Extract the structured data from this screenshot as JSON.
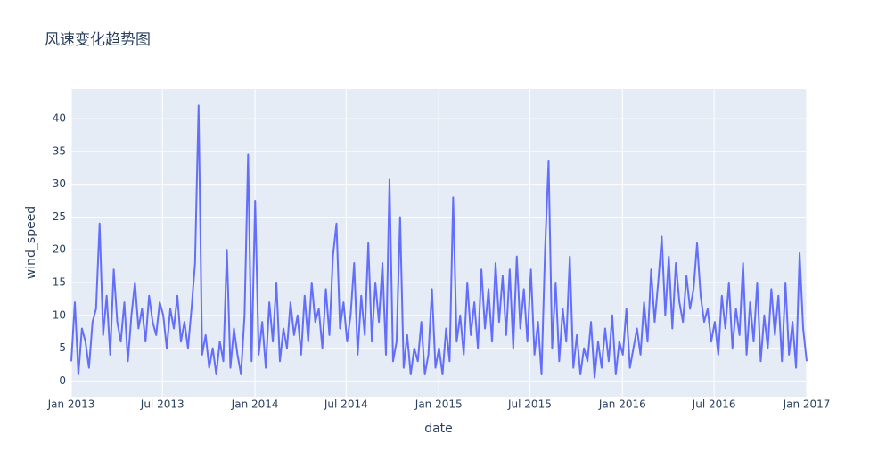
{
  "chart_data": {
    "type": "line",
    "title": "风速变化趋势图",
    "x_label": "date",
    "y_label": "wind_speed",
    "xlim": [
      "2013-01",
      "2017-01"
    ],
    "xticks": [
      {
        "value": "2013-01",
        "label": "Jan 2013"
      },
      {
        "value": "2013-07",
        "label": "Jul 2013"
      },
      {
        "value": "2014-01",
        "label": "Jan 2014"
      },
      {
        "value": "2014-07",
        "label": "Jul 2014"
      },
      {
        "value": "2015-01",
        "label": "Jan 2015"
      },
      {
        "value": "2015-07",
        "label": "Jul 2015"
      },
      {
        "value": "2016-01",
        "label": "Jan 2016"
      },
      {
        "value": "2016-07",
        "label": "Jul 2016"
      },
      {
        "value": "2017-01",
        "label": "Jan 2017"
      }
    ],
    "ylim": [
      -2.4,
      44.5
    ],
    "yticks": [
      0,
      5,
      10,
      15,
      20,
      25,
      30,
      35,
      40
    ],
    "grid": true,
    "series": [
      {
        "name": "wind_speed",
        "color": "#636efa",
        "values": [
          3,
          12,
          1,
          8,
          6,
          2,
          9,
          11,
          24,
          7,
          13,
          4,
          17,
          9,
          6,
          12,
          3,
          10,
          15,
          8,
          11,
          6,
          13,
          9,
          7,
          12,
          10,
          5,
          11,
          8,
          13,
          6,
          9,
          5,
          11,
          18,
          42,
          4,
          7,
          2,
          5,
          1,
          6,
          3,
          20,
          2,
          8,
          4,
          1,
          10,
          34.5,
          3,
          27.5,
          4,
          9,
          2,
          12,
          6,
          15,
          3,
          8,
          5,
          12,
          7,
          10,
          4,
          13,
          6,
          15,
          9,
          11,
          5,
          14,
          7,
          19,
          24,
          8,
          12,
          6,
          10,
          18,
          4,
          13,
          7,
          21,
          6,
          15,
          9,
          18,
          4,
          30.7,
          3,
          6,
          25,
          2,
          7,
          1,
          5,
          3,
          9,
          1,
          4,
          14,
          2,
          5,
          1,
          8,
          3,
          28,
          6,
          10,
          4,
          15,
          7,
          12,
          5,
          17,
          8,
          14,
          6,
          18,
          9,
          16,
          7,
          17,
          5,
          19,
          8,
          14,
          6,
          17,
          4,
          9,
          1,
          20,
          33.5,
          5,
          15,
          3,
          11,
          6,
          19,
          2,
          7,
          1,
          5,
          3,
          9,
          0.5,
          6,
          2,
          8,
          3,
          10,
          1,
          6,
          4,
          11,
          2,
          5,
          8,
          4,
          12,
          6,
          17,
          9,
          15,
          22,
          10,
          19,
          8,
          18,
          12,
          9,
          16,
          11,
          14,
          21,
          13,
          9,
          11,
          6,
          9,
          4,
          13,
          8,
          15,
          5,
          11,
          7,
          18,
          4,
          12,
          6,
          15,
          3,
          10,
          5,
          14,
          7,
          13,
          3,
          15,
          4,
          9,
          2,
          19.5,
          8,
          3
        ]
      }
    ]
  }
}
